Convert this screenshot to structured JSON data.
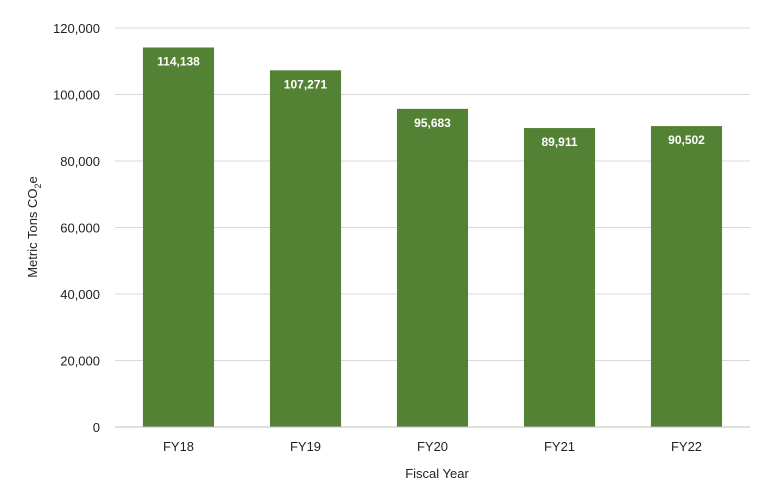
{
  "chart_data": {
    "type": "bar",
    "title": "",
    "xlabel": "Fiscal Year",
    "ylabel_prefix": "Metric Tons CO",
    "ylabel_sub": "2",
    "ylabel_suffix": "e",
    "categories": [
      "FY18",
      "FY19",
      "FY20",
      "FY21",
      "FY22"
    ],
    "values": [
      114138,
      107271,
      95683,
      89911,
      90502
    ],
    "data_labels": [
      "114,138",
      "107,271",
      "95,683",
      "89,911",
      "90,502"
    ],
    "y_ticks": [
      "0",
      "20,000",
      "40,000",
      "60,000",
      "80,000",
      "100,000",
      "120,000"
    ],
    "ylim": [
      0,
      120000
    ],
    "grid": true,
    "colors": {
      "bar": "#548235",
      "grid": "#d9d9d9",
      "axis": "#bfbfbf"
    }
  }
}
